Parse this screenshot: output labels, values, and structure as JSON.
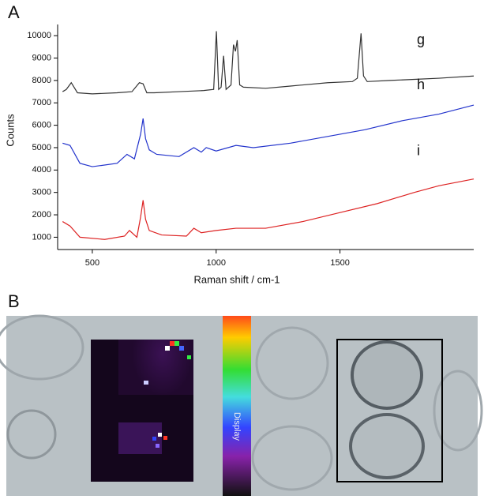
{
  "chart_data": {
    "type": "line",
    "panel_labels": [
      "A",
      "B"
    ],
    "xlabel": "Raman shift / cm-1",
    "ylabel": "Counts",
    "xlim": [
      360,
      2040
    ],
    "ylim": [
      450,
      10500
    ],
    "xticks": [
      500,
      1000,
      1500
    ],
    "yticks": [
      1000,
      2000,
      3000,
      4000,
      5000,
      6000,
      7000,
      8000,
      9000,
      10000
    ],
    "series": [
      {
        "name": "g",
        "color": "#333333",
        "x": [
          380,
          395,
          415,
          440,
          500,
          600,
          660,
          690,
          705,
          720,
          750,
          850,
          950,
          990,
          1001,
          1010,
          1020,
          1030,
          1040,
          1060,
          1070,
          1078,
          1085,
          1095,
          1110,
          1200,
          1300,
          1450,
          1550,
          1570,
          1585,
          1595,
          1610,
          1700,
          1800,
          1900,
          2040
        ],
        "values": [
          7500,
          7600,
          7900,
          7450,
          7400,
          7450,
          7500,
          7900,
          7850,
          7450,
          7450,
          7500,
          7550,
          7600,
          10200,
          7600,
          7700,
          9100,
          7600,
          7800,
          9600,
          9300,
          9800,
          7800,
          7700,
          7650,
          7750,
          7900,
          7950,
          8100,
          10100,
          8200,
          7950,
          8000,
          8050,
          8100,
          8200
        ]
      },
      {
        "name": "h",
        "color": "#2233cc",
        "x": [
          380,
          410,
          450,
          500,
          600,
          640,
          670,
          695,
          705,
          715,
          730,
          760,
          850,
          910,
          940,
          960,
          1000,
          1080,
          1150,
          1300,
          1450,
          1600,
          1750,
          1900,
          2040
        ],
        "values": [
          5200,
          5100,
          4300,
          4150,
          4300,
          4700,
          4500,
          5600,
          6300,
          5400,
          4900,
          4700,
          4600,
          5000,
          4800,
          5000,
          4850,
          5100,
          5000,
          5200,
          5500,
          5800,
          6200,
          6500,
          6900
        ]
      },
      {
        "name": "i",
        "color": "#dd2222",
        "x": [
          380,
          410,
          450,
          550,
          630,
          650,
          680,
          695,
          705,
          715,
          730,
          780,
          880,
          910,
          940,
          1000,
          1080,
          1200,
          1350,
          1500,
          1650,
          1800,
          1900,
          2040
        ],
        "values": [
          1700,
          1500,
          1000,
          900,
          1050,
          1300,
          1000,
          1900,
          2650,
          1800,
          1300,
          1100,
          1050,
          1400,
          1200,
          1300,
          1400,
          1400,
          1700,
          2100,
          2500,
          3000,
          3300,
          3600
        ]
      }
    ],
    "colorbar_label": "Display"
  }
}
